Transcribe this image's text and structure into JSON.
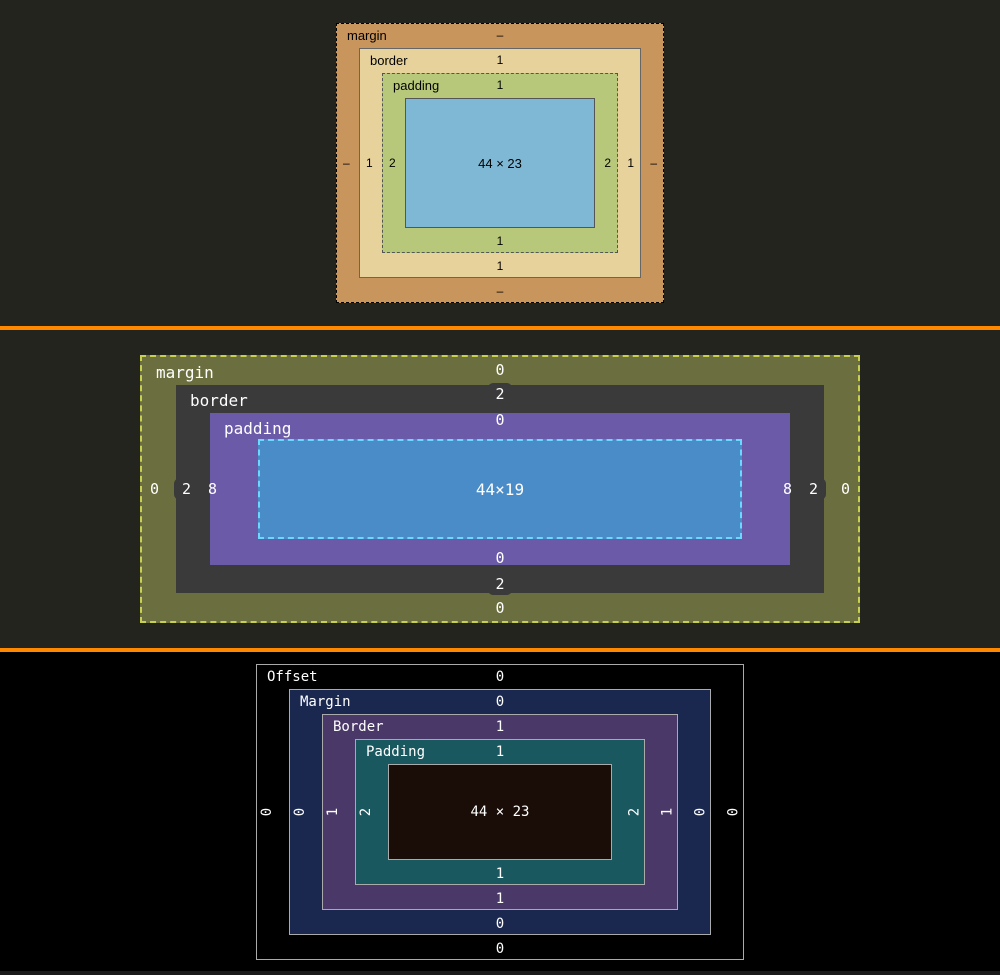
{
  "panel1": {
    "type": "box-model-diagram",
    "style": "chrome-devtools",
    "colors": {
      "margin": "#c8955c",
      "border": "#e8d29c",
      "padding": "#b8c87a",
      "content": "#7fb8d4",
      "margin_outline": "#000000",
      "text": "#000000"
    },
    "labels": {
      "margin": "margin",
      "border": "border",
      "padding": "padding"
    },
    "values": {
      "margin": {
        "top": "–",
        "right": "–",
        "bottom": "–",
        "left": "–"
      },
      "border": {
        "top": "1",
        "right": "1",
        "bottom": "1",
        "left": "1"
      },
      "padding": {
        "top": "1",
        "right": "2",
        "bottom": "1",
        "left": "2"
      },
      "content": "44 × 23"
    }
  },
  "panel2": {
    "type": "box-model-diagram",
    "style": "firefox-devtools",
    "colors": {
      "margin": "#6b6e3e",
      "margin_border": "#c8d050",
      "border": "#3a3a3a",
      "padding": "#6b5aa8",
      "content": "#4a8cc8",
      "content_border": "#6bd8ff",
      "text": "#ffffff",
      "pill_bg": "#3a3a3a"
    },
    "labels": {
      "margin": "margin",
      "border": "border",
      "padding": "padding"
    },
    "values": {
      "margin": {
        "top": "0",
        "right": "0",
        "bottom": "0",
        "left": "0"
      },
      "border": {
        "top": "2",
        "right": "2",
        "bottom": "2",
        "left": "2"
      },
      "padding": {
        "top": "0",
        "right": "8",
        "bottom": "0",
        "left": "8"
      },
      "content": "44×19"
    }
  },
  "panel3": {
    "type": "box-model-diagram",
    "style": "edge-devtools",
    "colors": {
      "offset": "#000000",
      "margin": "#1a2850",
      "border": "#4a3868",
      "padding": "#1a5860",
      "content": "#1a0d08",
      "outline": "#aaaaaa",
      "text": "#ffffff"
    },
    "labels": {
      "offset": "Offset",
      "margin": "Margin",
      "border": "Border",
      "padding": "Padding"
    },
    "values": {
      "offset": {
        "top": "0",
        "right": "0",
        "bottom": "0",
        "left": "0"
      },
      "margin": {
        "top": "0",
        "right": "0",
        "bottom": "0",
        "left": "0"
      },
      "border": {
        "top": "1",
        "right": "1",
        "bottom": "1",
        "left": "1"
      },
      "padding": {
        "top": "1",
        "right": "2",
        "bottom": "1",
        "left": "2"
      },
      "content": "44 × 23"
    }
  },
  "divider_color": "#ff8800",
  "background_color": "#1a1a1a"
}
